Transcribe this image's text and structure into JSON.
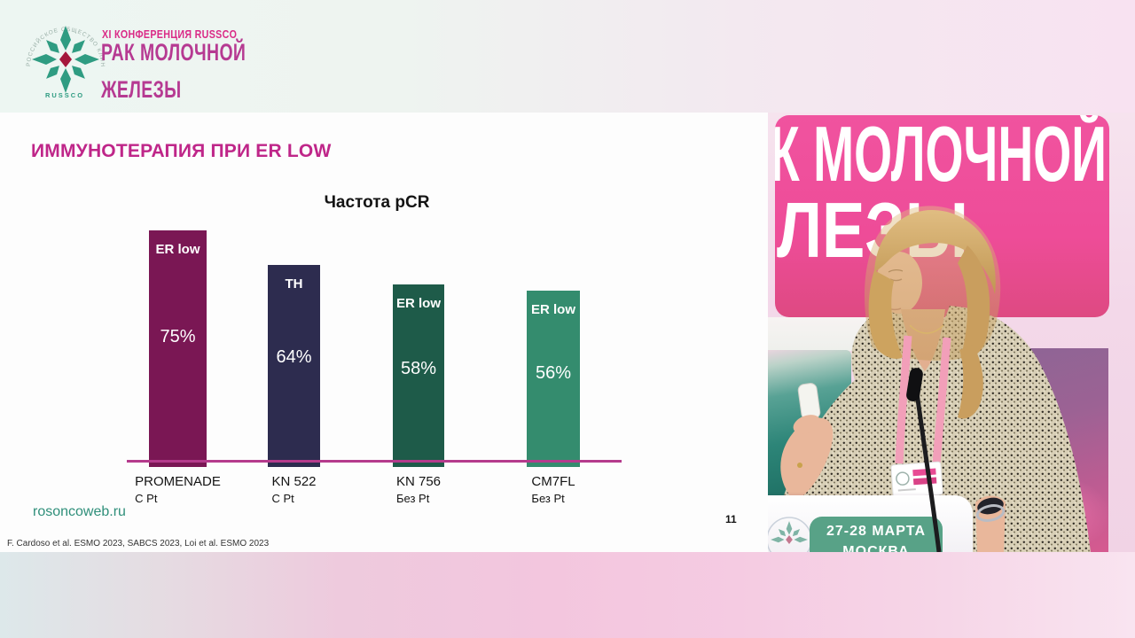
{
  "colors": {
    "accent_magenta": "#c02a8c",
    "header_title_magenta": "#b63a92",
    "axis_line": "#b53b8c",
    "link_teal": "#2f8f7a",
    "backdrop_tile_pink": "#ee4f9c",
    "date_badge_green": "#58a287"
  },
  "header": {
    "conference_label": "XI КОНФЕРЕНЦИЯ RUSSCO",
    "title_line1": "РАК МОЛОЧНОЙ",
    "title_line2": "ЖЕЛЕЗЫ",
    "logo_ring_text": "РОССИЙСКОЕ ОБЩЕСТВО КЛИНИЧЕСКОЙ ОНКОЛОГИИ",
    "logo_wordmark": "RUSSCO"
  },
  "slide": {
    "title": "ИММУНОТЕРАПИЯ ПРИ ER LOW",
    "footer_link": "rosoncoweb.ru",
    "citation": "F. Cardoso et al. ESMO 2023, SABCS 2023, Loi et al. ESMO 2023",
    "page_number": "11"
  },
  "chart_data": {
    "type": "bar",
    "title": "Частота pCR",
    "categories": [
      "PROMENADE",
      "KN 522",
      "KN 756",
      "CM7FL"
    ],
    "subcategories": [
      "С Pt",
      "С Pt",
      "Без Pt",
      "Без Pt"
    ],
    "values": [
      75,
      64,
      58,
      56
    ],
    "value_labels": [
      "75%",
      "64%",
      "58%",
      "56%"
    ],
    "bar_tags": [
      "ER low",
      "TH",
      "ER low",
      "ER low"
    ],
    "bar_colors": [
      "#7a1754",
      "#2d2c4f",
      "#1e5b49",
      "#348c6e"
    ],
    "xlabel": "",
    "ylabel": "",
    "ylim": [
      0,
      80
    ],
    "grid": false,
    "legend": false,
    "axis_color": "#b53b8c"
  },
  "video": {
    "backdrop_line1": "К МОЛОЧНОЙ",
    "backdrop_line2": "ЛЕЗЫ",
    "podium_badge_line1": "27-28 МАРТА",
    "podium_badge_line2": "МОСКВА"
  }
}
